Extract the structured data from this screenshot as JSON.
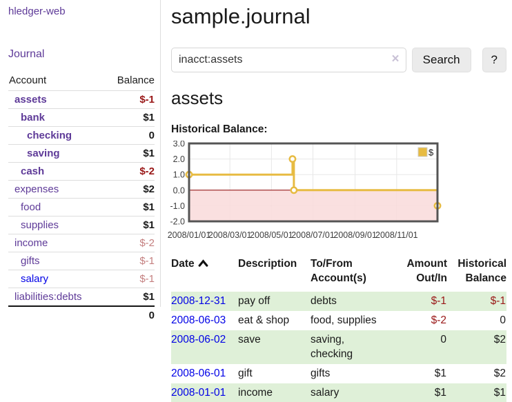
{
  "sidebar": {
    "brand": "hledger-web",
    "journal_link": "Journal",
    "table": {
      "header": {
        "account": "Account",
        "balance": "Balance"
      },
      "rows": [
        {
          "name": "assets",
          "depth": 1,
          "emph": true,
          "balance": "$-1",
          "balance_class": "neg-strong"
        },
        {
          "name": "bank",
          "depth": 2,
          "emph": true,
          "balance": "$1",
          "balance_class": ""
        },
        {
          "name": "checking",
          "depth": 3,
          "emph": true,
          "balance": "0",
          "balance_class": ""
        },
        {
          "name": "saving",
          "depth": 3,
          "emph": true,
          "balance": "$1",
          "balance_class": ""
        },
        {
          "name": "cash",
          "depth": 2,
          "emph": true,
          "balance": "$-2",
          "balance_class": "neg-strong"
        },
        {
          "name": "expenses",
          "depth": 1,
          "emph": false,
          "balance": "$2",
          "balance_class": ""
        },
        {
          "name": "food",
          "depth": 2,
          "emph": false,
          "balance": "$1",
          "balance_class": ""
        },
        {
          "name": "supplies",
          "depth": 2,
          "emph": false,
          "balance": "$1",
          "balance_class": ""
        },
        {
          "name": "income",
          "depth": 1,
          "emph": false,
          "balance": "$-2",
          "balance_class": "neg-dim"
        },
        {
          "name": "gifts",
          "depth": 2,
          "emph": false,
          "balance": "$-1",
          "balance_class": "neg-dim"
        },
        {
          "name": "salary",
          "depth": 2,
          "emph": false,
          "unvisited": true,
          "balance": "$-1",
          "balance_class": "neg-dim"
        },
        {
          "name": "liabilities:debts",
          "depth": 1,
          "emph": false,
          "balance": "$1",
          "balance_class": ""
        }
      ],
      "total": "0"
    }
  },
  "main": {
    "title": "sample.journal",
    "search": {
      "value": "inacct:assets",
      "clear_icon": "×",
      "search_button": "Search",
      "help_button": "?"
    },
    "account_heading": "assets",
    "chart_heading": "Historical Balance:"
  },
  "chart_data": {
    "type": "line",
    "step": true,
    "title": "Historical Balance",
    "series": [
      {
        "name": "$",
        "color": "#E7BB42",
        "points": [
          [
            "2008-01-01",
            1
          ],
          [
            "2008-06-01",
            2
          ],
          [
            "2008-06-03",
            0
          ],
          [
            "2008-12-31",
            -1
          ]
        ]
      }
    ],
    "ylim": [
      -2,
      3
    ],
    "yticks": [
      {
        "v": 3,
        "label": "3.0"
      },
      {
        "v": 2,
        "label": "2.0"
      },
      {
        "v": 1,
        "label": "1.0"
      },
      {
        "v": 0,
        "label": "0.0"
      },
      {
        "v": -1,
        "label": "-1.0"
      },
      {
        "v": -2,
        "label": "-2.0"
      }
    ],
    "xticks": [
      {
        "date": "2008-01-01",
        "label": "2008/01/01"
      },
      {
        "date": "2008-03-01",
        "label": "2008/03/01"
      },
      {
        "date": "2008-05-01",
        "label": "2008/05/01"
      },
      {
        "date": "2008-07-01",
        "label": "2008/07/01"
      },
      {
        "date": "2008-09-01",
        "label": "2008/09/01"
      },
      {
        "date": "2008-11-01",
        "label": "2008/11/01"
      }
    ],
    "xrange": [
      "2008-01-01",
      "2008-12-31"
    ],
    "legend": {
      "label": "$",
      "position": "top-right"
    },
    "grid": true,
    "colors": {
      "negative_region": "#F9DADA",
      "zero_line": "#8B0000",
      "grid": "#E7E7E7",
      "border": "#545454",
      "tick_text": "#3d3d3d"
    }
  },
  "register": {
    "headers": [
      {
        "line1": "Date",
        "line2": "",
        "align": "left",
        "sort": "asc"
      },
      {
        "line1": "Description",
        "line2": "",
        "align": "left"
      },
      {
        "line1": "To/From",
        "line2": "Account(s)",
        "align": "left"
      },
      {
        "line1": "Amount",
        "line2": "Out/In",
        "align": "right"
      },
      {
        "line1": "Historical",
        "line2": "Balance",
        "align": "right"
      }
    ],
    "rows": [
      {
        "date": "2008-12-31",
        "description": "pay off",
        "accounts": "debts",
        "amount": "$-1",
        "amount_negative": true,
        "balance": "$-1",
        "balance_negative": true,
        "highlight": true
      },
      {
        "date": "2008-06-03",
        "description": "eat & shop",
        "accounts": "food, supplies",
        "amount": "$-2",
        "amount_negative": true,
        "balance": "0",
        "balance_negative": false,
        "highlight": false
      },
      {
        "date": "2008-06-02",
        "description": "save",
        "accounts": "saving, checking",
        "amount": "0",
        "amount_negative": false,
        "balance": "$2",
        "balance_negative": false,
        "highlight": true
      },
      {
        "date": "2008-06-01",
        "description": "gift",
        "accounts": "gifts",
        "amount": "$1",
        "amount_negative": false,
        "balance": "$2",
        "balance_negative": false,
        "highlight": false
      },
      {
        "date": "2008-01-01",
        "description": "income",
        "accounts": "salary",
        "amount": "$1",
        "amount_negative": false,
        "balance": "$1",
        "balance_negative": false,
        "highlight": true
      }
    ]
  },
  "colors": {
    "link_purple": "#5E3A98",
    "link_blue": "#0000E6",
    "negative_strong": "#991717",
    "negative_dim": "#C47F7F",
    "row_highlight": "#DFF0D8",
    "accent_gold": "#E7BB42"
  }
}
